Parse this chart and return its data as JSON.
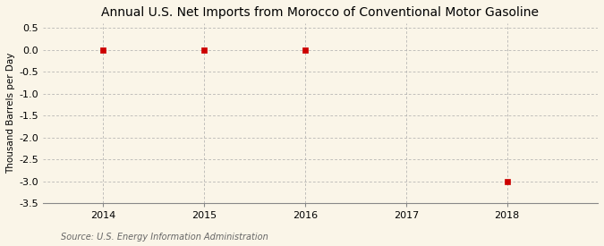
{
  "title": "Annual U.S. Net Imports from Morocco of Conventional Motor Gasoline",
  "ylabel": "Thousand Barrels per Day",
  "source": "Source: U.S. Energy Information Administration",
  "x_all": [
    2014,
    2015,
    2016,
    2017,
    2018
  ],
  "y_all": [
    0.0,
    0.0,
    0.0,
    null,
    -3.0
  ],
  "xlim": [
    2013.4,
    2018.9
  ],
  "ylim": [
    -3.5,
    0.6
  ],
  "yticks": [
    0.5,
    0.0,
    -0.5,
    -1.0,
    -1.5,
    -2.0,
    -2.5,
    -3.0,
    -3.5
  ],
  "xticks": [
    2014,
    2015,
    2016,
    2017,
    2018
  ],
  "marker_color": "#cc0000",
  "marker_style": "s",
  "marker_size": 4,
  "grid_color": "#aaaaaa",
  "bg_color": "#faf5e8",
  "title_fontsize": 10,
  "axis_label_fontsize": 7.5,
  "tick_fontsize": 8,
  "source_fontsize": 7
}
